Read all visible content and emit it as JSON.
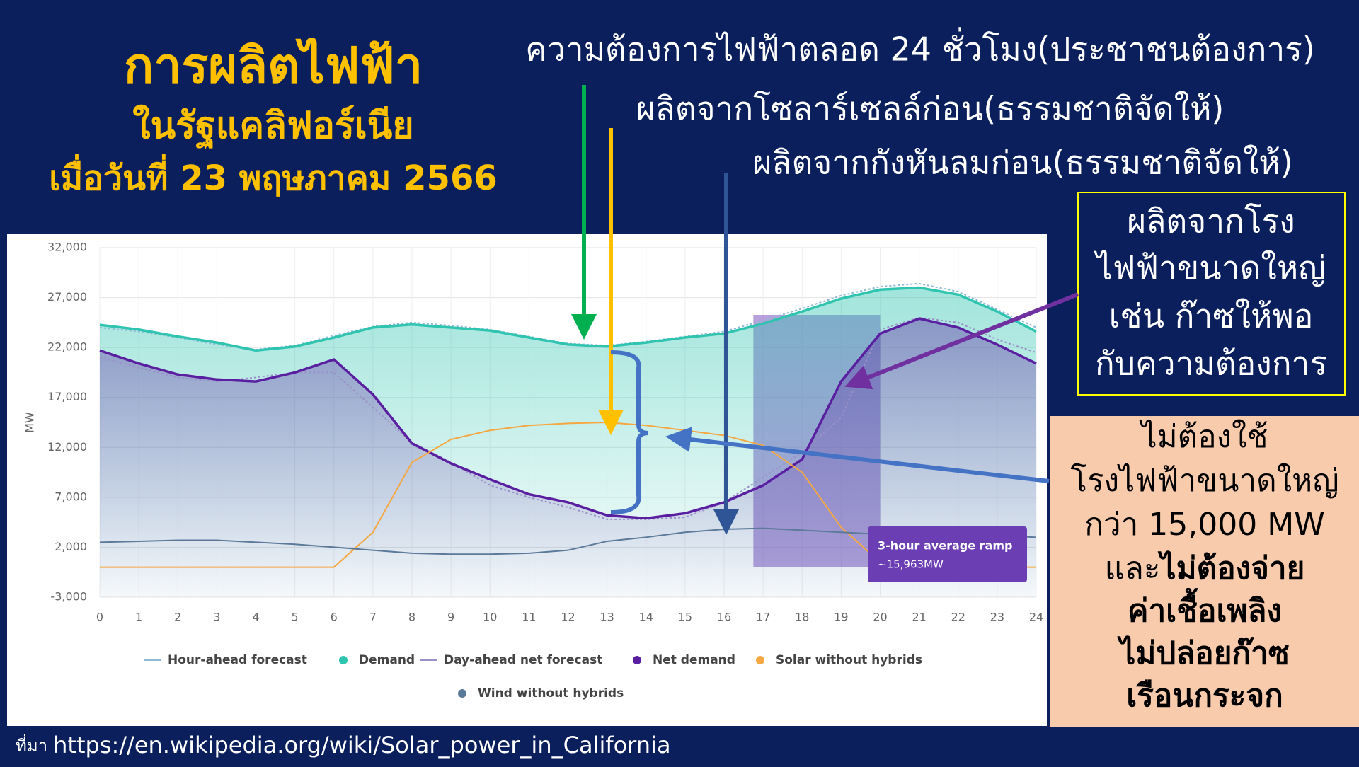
{
  "slide": {
    "title": [
      "การผลิตไฟฟ้า",
      "ในรัฐแคลิฟอร์เนีย",
      "เมื่อวันที่ 23 พฤษภาคม 2566"
    ],
    "labels": [
      "ความต้องการไฟฟ้าตลอด 24 ชั่วโมง(ประชาชนต้องการ)",
      "ผลิตจากโซลาร์เซลล์ก่อน(ธรรมชาติจัดให้)",
      "ผลิตจากกังหันลมก่อน(ธรรมชาติจัดให้)"
    ],
    "gas_box": [
      "ผลิตจากโรง",
      "ไฟฟ้าขนาดใหญ่",
      "เช่น ก๊าซให้พอ",
      "กับความต้องการ"
    ],
    "benefit_box": [
      "ไม่ต้องใช้",
      "โรงไฟฟ้าขนาดใหญ่",
      "กว่า 15,000 MW",
      "และ",
      "ไม่ต้องจ่าย",
      "ค่าเชื้อเพลิง",
      "ไม่ปล่อยก๊าซ",
      "เรือนกระจก"
    ],
    "source_prefix": "ที่มา",
    "source_url": "https://en.wikipedia.org/wiki/Solar_power_in_California"
  },
  "chart_data": {
    "type": "line",
    "y_label": "MW",
    "x": [
      0,
      1,
      2,
      3,
      4,
      5,
      6,
      7,
      8,
      9,
      10,
      11,
      12,
      13,
      14,
      15,
      16,
      17,
      18,
      19,
      20,
      21,
      22,
      23,
      24
    ],
    "xlim": [
      0,
      24
    ],
    "xticks": [
      0,
      1,
      2,
      3,
      4,
      5,
      6,
      7,
      8,
      9,
      10,
      11,
      12,
      13,
      14,
      15,
      16,
      17,
      18,
      19,
      20,
      21,
      22,
      23,
      24
    ],
    "ylim": [
      -3000,
      32000
    ],
    "yticks": [
      {
        "value": -3000,
        "label": "-3,000"
      },
      {
        "value": 2000,
        "label": "2,000"
      },
      {
        "value": 7000,
        "label": "7,000"
      },
      {
        "value": 12000,
        "label": "12,000"
      },
      {
        "value": 17000,
        "label": "17,000"
      },
      {
        "value": 22000,
        "label": "22,000"
      },
      {
        "value": 27000,
        "label": "27,000"
      },
      {
        "value": 32000,
        "label": "32,000"
      }
    ],
    "grid": true,
    "series": [
      {
        "name": "Hour-ahead forecast",
        "color": "#8fb8d6",
        "style": "dotted",
        "values": [
          24000,
          23600,
          23000,
          22300,
          21800,
          22200,
          23200,
          24100,
          24500,
          24200,
          23800,
          23100,
          22400,
          22200,
          22600,
          23100,
          23600,
          24700,
          25900,
          27200,
          28100,
          28400,
          27600,
          25800,
          24000
        ]
      },
      {
        "name": "Demand",
        "color": "#2ec4b0",
        "fill": true,
        "values": [
          24270,
          23800,
          23100,
          22500,
          21700,
          22100,
          23000,
          24000,
          24300,
          24000,
          23700,
          23000,
          22300,
          22100,
          22500,
          23000,
          23400,
          24400,
          25600,
          26900,
          27800,
          28000,
          27300,
          25600,
          23600
        ]
      },
      {
        "name": "Day-ahead net forecast",
        "color": "#9a90c8",
        "style": "dotted",
        "values": [
          21000,
          20000,
          19000,
          18600,
          19000,
          19500,
          19500,
          16000,
          12500,
          10500,
          8200,
          7000,
          6000,
          4800,
          4800,
          5000,
          6500,
          9000,
          11500,
          15000,
          23800,
          25000,
          24500,
          22800,
          21500
        ]
      },
      {
        "name": "Net demand",
        "color": "#5a1fa0",
        "fill": true,
        "values": [
          21700,
          20400,
          19300,
          18800,
          18600,
          19500,
          20800,
          17300,
          12400,
          10400,
          8800,
          7300,
          6500,
          5200,
          4900,
          5400,
          6500,
          8200,
          10800,
          18600,
          23400,
          24900,
          24000,
          22300,
          20400
        ]
      },
      {
        "name": "Solar without hybrids",
        "color": "#f5a742",
        "values": [
          0,
          0,
          0,
          0,
          0,
          0,
          0,
          3500,
          10500,
          12800,
          13700,
          14200,
          14400,
          14500,
          14200,
          13700,
          13200,
          12200,
          9500,
          4000,
          500,
          0,
          0,
          0,
          0
        ]
      },
      {
        "name": "Wind without hybrids",
        "color": "#5b7a99",
        "values": [
          2500,
          2600,
          2700,
          2700,
          2500,
          2300,
          2000,
          1700,
          1400,
          1300,
          1300,
          1400,
          1700,
          2600,
          3000,
          3500,
          3800,
          3900,
          3700,
          3500,
          3300,
          3200,
          3200,
          3200,
          3000
        ]
      }
    ],
    "highlight_span": [
      16.75,
      20
    ],
    "annotation": [
      "3-hour average ramp",
      "~15,963MW"
    ]
  }
}
